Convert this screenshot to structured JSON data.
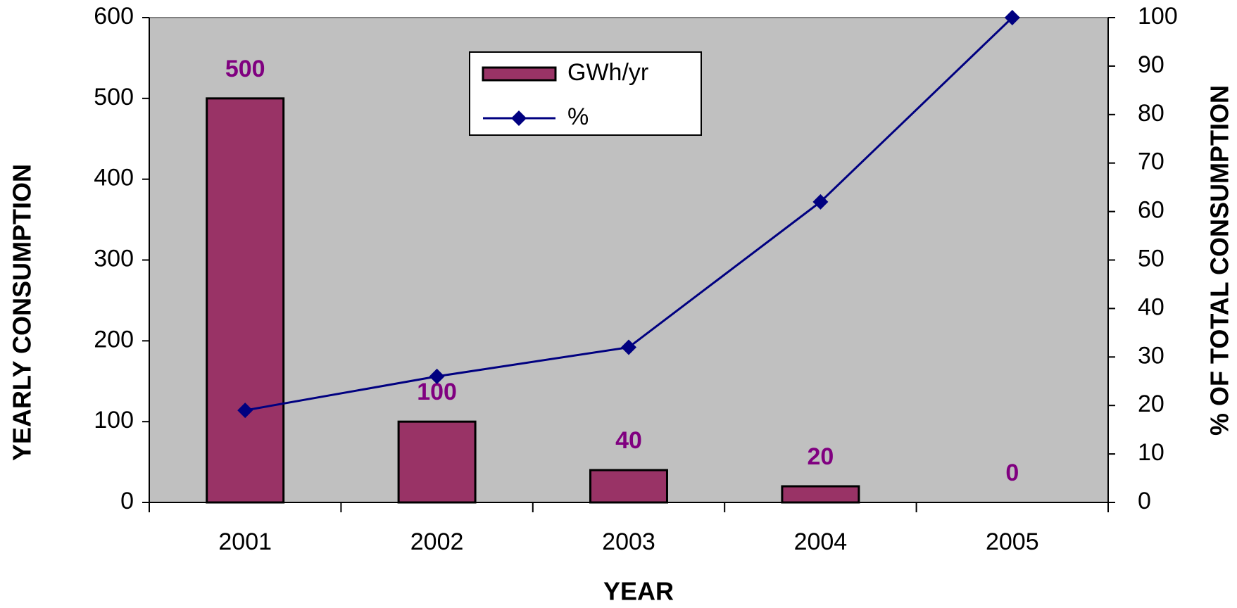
{
  "chart_data": {
    "type": "bar",
    "x_label": "YEAR",
    "y_label": "YEARLY  CONSUMPTION",
    "y2_label": "% OF TOTAL CONSUMPTION",
    "categories": [
      "2001",
      "2002",
      "2003",
      "2004",
      "2005"
    ],
    "series": [
      {
        "name": "GWh/yr",
        "type": "bar",
        "color": "#993366",
        "values": [
          500,
          100,
          40,
          20,
          0
        ]
      },
      {
        "name": "%",
        "type": "line",
        "axis": "y2",
        "color": "#000080",
        "values": [
          19,
          26,
          32,
          62,
          100
        ]
      }
    ],
    "ylim": [
      0,
      600
    ],
    "yticks": [
      0,
      100,
      200,
      300,
      400,
      500,
      600
    ],
    "y2lim": [
      0,
      100
    ],
    "y2ticks": [
      0,
      10,
      20,
      30,
      40,
      50,
      60,
      70,
      80,
      90,
      100
    ],
    "grid": false,
    "legend": "top",
    "background": "#c0c0c0"
  }
}
